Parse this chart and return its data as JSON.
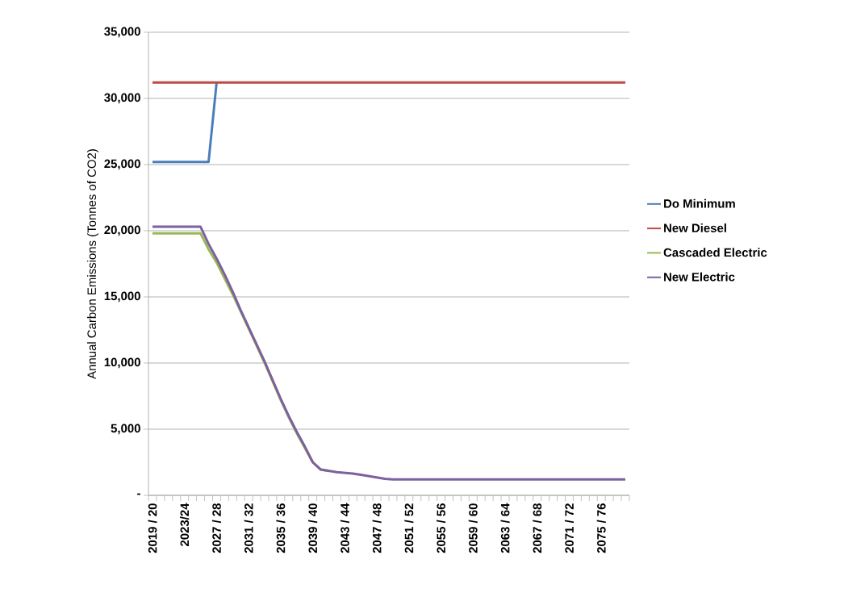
{
  "chart_data": {
    "type": "line",
    "ylabel": "Annual Carbon Emissions (Tonnes of CO2)",
    "categories": [
      "2019 / 20",
      null,
      null,
      null,
      "2023/24",
      null,
      null,
      null,
      "2027 / 28",
      null,
      null,
      null,
      "2031 / 32",
      null,
      null,
      null,
      "2035 / 36",
      null,
      null,
      null,
      "2039 / 40",
      null,
      null,
      null,
      "2043 / 44",
      null,
      null,
      null,
      "2047 / 48",
      null,
      null,
      null,
      "2051 / 52",
      null,
      null,
      null,
      "2055 / 56",
      null,
      null,
      null,
      "2059 / 60",
      null,
      null,
      null,
      "2063 / 64",
      null,
      null,
      null,
      "2067 / 68",
      null,
      null,
      null,
      "2071 / 72",
      null,
      null,
      null,
      "2075 / 76",
      null,
      null,
      null
    ],
    "series": [
      {
        "name": "Do Minimum",
        "color": "#4a7ebb",
        "values": [
          25200,
          25200,
          25200,
          25200,
          25200,
          25200,
          25200,
          25200,
          31200,
          null,
          null,
          null,
          null,
          null,
          null,
          null,
          null,
          null,
          null,
          null,
          null,
          null,
          null,
          null,
          null,
          null,
          null,
          null,
          null,
          null,
          null,
          null,
          null,
          null,
          null,
          null,
          null,
          null,
          null,
          null,
          null,
          null,
          null,
          null,
          null,
          null,
          null,
          null,
          null,
          null,
          null,
          null,
          null,
          null,
          null,
          null,
          null,
          null,
          null,
          null
        ]
      },
      {
        "name": "New Diesel",
        "color": "#be4b48",
        "values": [
          31200,
          31200,
          31200,
          31200,
          31200,
          31200,
          31200,
          31200,
          31200,
          31200,
          31200,
          31200,
          31200,
          31200,
          31200,
          31200,
          31200,
          31200,
          31200,
          31200,
          31200,
          31200,
          31200,
          31200,
          31200,
          31200,
          31200,
          31200,
          31200,
          31200,
          31200,
          31200,
          31200,
          31200,
          31200,
          31200,
          31200,
          31200,
          31200,
          31200,
          31200,
          31200,
          31200,
          31200,
          31200,
          31200,
          31200,
          31200,
          31200,
          31200,
          31200,
          31200,
          31200,
          31200,
          31200,
          31200,
          31200,
          31200,
          31200,
          31200
        ]
      },
      {
        "name": "Cascaded Electric",
        "color": "#98b954",
        "values": [
          19800,
          19800,
          19800,
          19800,
          19800,
          19800,
          19800,
          18600,
          17600,
          16400,
          15200,
          13900,
          12600,
          11300,
          10000,
          8600,
          7200,
          5900,
          4700,
          3600,
          2500,
          1950,
          1850,
          null,
          null,
          null,
          null,
          null,
          null,
          null,
          null,
          null,
          null,
          null,
          null,
          null,
          null,
          null,
          null,
          null,
          null,
          null,
          null,
          null,
          null,
          null,
          null,
          null,
          null,
          null,
          null,
          null,
          null,
          null,
          null,
          null,
          null,
          null,
          null,
          null
        ]
      },
      {
        "name": "New Electric",
        "color": "#7d60a0",
        "values": [
          20300,
          20300,
          20300,
          20300,
          20300,
          20300,
          20300,
          19000,
          17900,
          16700,
          15400,
          14000,
          12700,
          11400,
          10100,
          8700,
          7300,
          6000,
          4800,
          3700,
          2500,
          1950,
          1850,
          1750,
          1700,
          1650,
          1550,
          1450,
          1350,
          1250,
          1200,
          1200,
          1200,
          1200,
          1200,
          1200,
          1200,
          1200,
          1200,
          1200,
          1200,
          1200,
          1200,
          1200,
          1200,
          1200,
          1200,
          1200,
          1200,
          1200,
          1200,
          1200,
          1200,
          1200,
          1200,
          1200,
          1200,
          1200,
          1200,
          1200
        ]
      }
    ],
    "ylim": [
      0,
      35000
    ],
    "yticks": [
      {
        "value": 0,
        "label": "-"
      },
      {
        "value": 5000,
        "label": "5,000"
      },
      {
        "value": 10000,
        "label": "10,000"
      },
      {
        "value": 15000,
        "label": "15,000"
      },
      {
        "value": 20000,
        "label": "20,000"
      },
      {
        "value": 25000,
        "label": "25,000"
      },
      {
        "value": 30000,
        "label": "30,000"
      },
      {
        "value": 35000,
        "label": "35,000"
      }
    ],
    "grid": "y",
    "legend": "right",
    "marker": "none",
    "line_style": "solid"
  }
}
